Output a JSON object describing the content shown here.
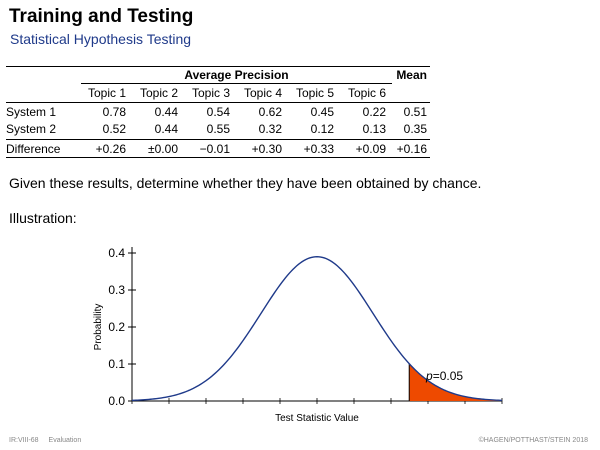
{
  "slide": {
    "title": "Training and Testing",
    "subtitle": "Statistical Hypothesis Testing"
  },
  "table": {
    "group_header": "Average Precision",
    "mean_header": "Mean",
    "topics": [
      "Topic 1",
      "Topic 2",
      "Topic 3",
      "Topic 4",
      "Topic 5",
      "Topic 6"
    ],
    "rows": [
      {
        "label": "System 1",
        "values": [
          "0.78",
          "0.44",
          "0.54",
          "0.62",
          "0.45",
          "0.22"
        ],
        "mean": "0.51"
      },
      {
        "label": "System 2",
        "values": [
          "0.52",
          "0.44",
          "0.55",
          "0.32",
          "0.12",
          "0.13"
        ],
        "mean": "0.35"
      }
    ],
    "difference": {
      "label": "Difference",
      "values": [
        "+0.26",
        "±0.00",
        "−0.01",
        "+0.30",
        "+0.33",
        "+0.09"
      ],
      "mean": "+0.16"
    }
  },
  "question": "Given these results, determine whether they have been obtained by chance.",
  "illustration_label": "Illustration:",
  "chart_data": {
    "type": "area",
    "ylabel": "Probability",
    "xlabel": "Test Statistic Value",
    "ylim": [
      0,
      0.4
    ],
    "yticks": [
      "0.0",
      "0.1",
      "0.2",
      "0.3",
      "0.4"
    ],
    "curve": {
      "distribution": "normal",
      "peak": 0.39
    },
    "critical_region": {
      "tail": "right",
      "p_value": 0.05,
      "color": "#ee4a00"
    },
    "annotation": {
      "p": "p",
      "rest": "=0.05"
    },
    "curve_color": "#1f3a8a"
  },
  "footer": {
    "page": "IR:VIII-68",
    "section": "Evaluation",
    "copyright": "©HAGEN/POTTHAST/STEIN 2018"
  }
}
